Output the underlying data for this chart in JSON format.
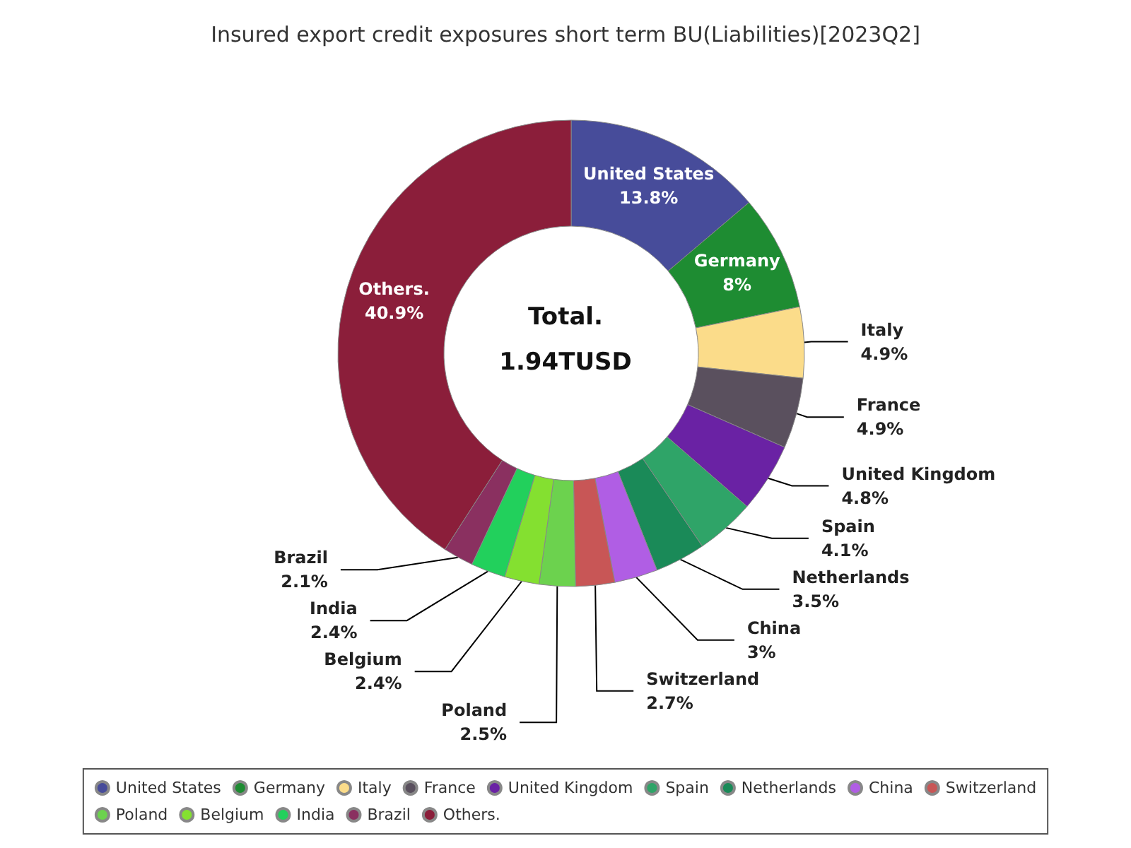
{
  "chart_data": {
    "type": "donut",
    "title": "Insured export credit exposures short term BU(Liabilities)[2023Q2]",
    "categories": [
      "United States",
      "Germany",
      "Italy",
      "France",
      "United Kingdom",
      "Spain",
      "Netherlands",
      "China",
      "Switzerland",
      "Poland",
      "Belgium",
      "India",
      "Brazil",
      "Others."
    ],
    "values": [
      13.8,
      8,
      4.9,
      4.9,
      4.8,
      4.1,
      3.5,
      3,
      2.7,
      2.5,
      2.4,
      2.4,
      2.1,
      40.9
    ],
    "colors": [
      "#474c9a",
      "#1e8c32",
      "#fbdc8a",
      "#5a505e",
      "#6a22a4",
      "#2fa468",
      "#1a8a58",
      "#b05ee4",
      "#c85656",
      "#6cd24e",
      "#84e030",
      "#22d05c",
      "#8a3060",
      "#8b1e3a"
    ],
    "annotations": [
      "Total.",
      "1.94TUSD"
    ],
    "value_labels": [
      "13.8%",
      "8%",
      "4.9%",
      "4.9%",
      "4.8%",
      "4.1%",
      "3.5%",
      "3%",
      "2.7%",
      "2.5%",
      "2.4%",
      "2.4%",
      "2.1%",
      "40.9%"
    ],
    "legend": "bottom"
  }
}
